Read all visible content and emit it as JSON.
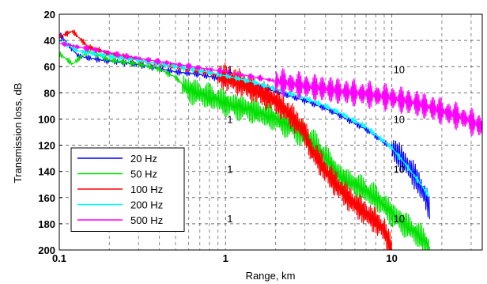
{
  "chart_data": {
    "type": "line",
    "title": "",
    "xlabel": "Range, km",
    "ylabel": "Transmission loss, dB",
    "xscale": "log",
    "xlim": [
      0.1,
      35
    ],
    "ylim": [
      200,
      20
    ],
    "y_inverted": true,
    "grid": true,
    "x_ticks": [
      {
        "value": 0.1,
        "label": "0.1"
      },
      {
        "value": 1,
        "label": "1"
      },
      {
        "value": 10,
        "label": "10"
      }
    ],
    "y_ticks": [
      20,
      40,
      60,
      80,
      100,
      120,
      140,
      160,
      180,
      200
    ],
    "legend_position": "bottom-left",
    "annotations": [
      {
        "text": "1",
        "x": 1,
        "y": 65
      },
      {
        "text": "10",
        "x": 10,
        "y": 65
      },
      {
        "text": "1",
        "x": 1,
        "y": 103
      },
      {
        "text": "10",
        "x": 10,
        "y": 103
      },
      {
        "text": "1",
        "x": 1,
        "y": 141
      },
      {
        "text": "10",
        "x": 10,
        "y": 141
      },
      {
        "text": "1",
        "x": 1,
        "y": 179
      },
      {
        "text": "10",
        "x": 10,
        "y": 179
      }
    ],
    "series": [
      {
        "name": "20 Hz",
        "color": "#0000ff",
        "x": [
          0.1,
          0.13,
          0.18,
          0.25,
          0.35,
          0.5,
          0.7,
          1.0,
          1.5,
          2.0,
          3.0,
          4.0,
          5.0,
          7.0,
          10.0,
          12.0,
          14.0,
          16.0,
          17.0
        ],
        "y": [
          35,
          52,
          55,
          57,
          60,
          64,
          66,
          70,
          74,
          79,
          86,
          92,
          98,
          108,
          122,
          133,
          145,
          160,
          170
        ],
        "noise_from_x": 10
      },
      {
        "name": "50 Hz",
        "color": "#00e000",
        "x": [
          0.1,
          0.12,
          0.15,
          0.2,
          0.3,
          0.4,
          0.5,
          0.6,
          0.8,
          1.0,
          1.5,
          2.0,
          2.5,
          3.0,
          3.5,
          4.0,
          5.0,
          6.0,
          8.0,
          10.0,
          13.0,
          16.0,
          17.0
        ],
        "y": [
          50,
          58,
          48,
          55,
          58,
          62,
          68,
          78,
          83,
          88,
          94,
          100,
          106,
          113,
          120,
          130,
          145,
          150,
          160,
          172,
          184,
          194,
          198
        ],
        "noise_from_x": 0.55
      },
      {
        "name": "100 Hz",
        "color": "#ff0000",
        "x": [
          0.1,
          0.12,
          0.15,
          0.2,
          0.3,
          0.4,
          0.5,
          0.6,
          0.8,
          1.0,
          1.2,
          1.5,
          2.0,
          2.5,
          3.0,
          3.3,
          3.5,
          4.0,
          5.0,
          6.0,
          7.0,
          8.0,
          9.0,
          10.0
        ],
        "y": [
          37,
          33,
          45,
          50,
          55,
          58,
          60,
          62,
          65,
          68,
          72,
          78,
          86,
          98,
          110,
          125,
          128,
          140,
          155,
          165,
          172,
          178,
          185,
          200
        ],
        "noise_from_x": 0.9
      },
      {
        "name": "200 Hz",
        "color": "#00ffff",
        "x": [
          0.1,
          0.13,
          0.2,
          0.3,
          0.5,
          0.7,
          1.0,
          1.5,
          2.0,
          3.0,
          4.0,
          5.0,
          7.0,
          10.0,
          12.0,
          15.0,
          17.0
        ],
        "y": [
          40,
          48,
          52,
          55,
          60,
          63,
          67,
          72,
          77,
          84,
          90,
          96,
          106,
          122,
          134,
          150,
          160
        ],
        "noise_from_x": 100
      },
      {
        "name": "500 Hz",
        "color": "#ff00ff",
        "x": [
          0.1,
          0.13,
          0.18,
          0.25,
          0.35,
          0.5,
          0.7,
          1.0,
          1.5,
          2.0,
          3.0,
          4.0,
          5.0,
          7.0,
          10.0,
          14.0,
          20.0,
          28.0,
          35.0
        ],
        "y": [
          42,
          45,
          48,
          52,
          55,
          58,
          61,
          64,
          68,
          71,
          75,
          77,
          79,
          81,
          84,
          88,
          94,
          100,
          106
        ],
        "noise_from_x": 2.0
      }
    ]
  }
}
